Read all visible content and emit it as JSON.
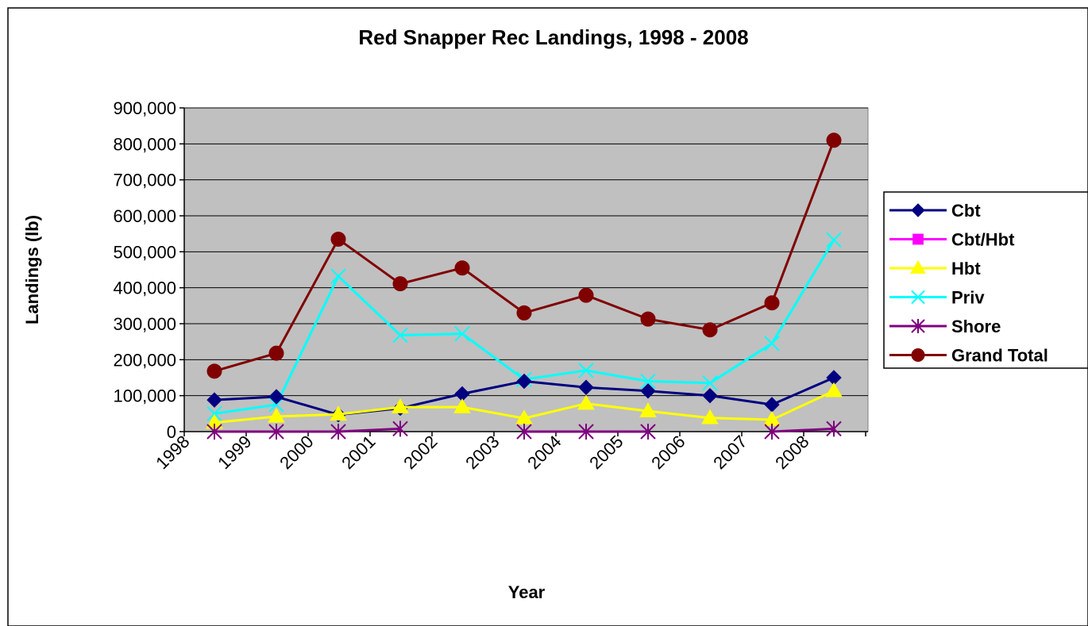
{
  "chart_data": {
    "type": "line",
    "title": "Red Snapper Rec Landings, 1998 - 2008",
    "xlabel": "Year",
    "ylabel": "Landings (lb)",
    "x": [
      "1998",
      "1999",
      "2000",
      "2001",
      "2002",
      "2003",
      "2004",
      "2005",
      "2006",
      "2007",
      "2008"
    ],
    "ylim": [
      0,
      900000
    ],
    "yticks": [
      0,
      100000,
      200000,
      300000,
      400000,
      500000,
      600000,
      700000,
      800000,
      900000
    ],
    "ytick_labels": [
      "0",
      "100,000",
      "200,000",
      "300,000",
      "400,000",
      "500,000",
      "600,000",
      "700,000",
      "800,000",
      "900,000"
    ],
    "grid": true,
    "plot_background": "#c0c0c0",
    "legend_position": "right",
    "series": [
      {
        "name": "Cbt",
        "color": "#000080",
        "marker": "diamond",
        "values": [
          88000,
          97000,
          47000,
          65000,
          105000,
          140000,
          123000,
          113000,
          100000,
          75000,
          150000
        ]
      },
      {
        "name": "Cbt/Hbt",
        "color": "#ff00ff",
        "marker": "square",
        "values": [
          null,
          null,
          null,
          null,
          null,
          null,
          null,
          null,
          null,
          null,
          null
        ]
      },
      {
        "name": "Hbt",
        "color": "#ffff00",
        "marker": "triangle",
        "values": [
          25000,
          42000,
          48000,
          68000,
          68000,
          37000,
          78000,
          57000,
          38000,
          33000,
          113000
        ]
      },
      {
        "name": "Priv",
        "color": "#00ffff",
        "marker": "x",
        "values": [
          50000,
          75000,
          432000,
          268000,
          272000,
          145000,
          170000,
          140000,
          135000,
          245000,
          533000
        ]
      },
      {
        "name": "Shore",
        "color": "#800080",
        "marker": "asterisk",
        "values": [
          0,
          0,
          0,
          8000,
          null,
          0,
          0,
          0,
          null,
          0,
          8000
        ]
      },
      {
        "name": "Grand Total",
        "color": "#800000",
        "marker": "circle",
        "values": [
          168000,
          218000,
          535000,
          411000,
          455000,
          330000,
          379000,
          313000,
          283000,
          358000,
          810000
        ]
      }
    ]
  }
}
